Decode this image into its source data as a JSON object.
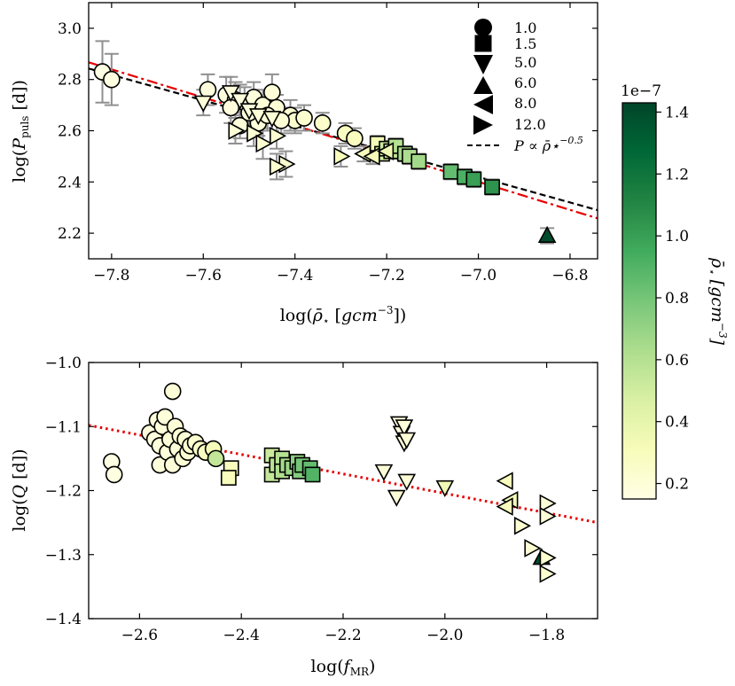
{
  "colorbar": {
    "label": "ρ̄⋆ [gcm⁻³]",
    "exponent": "1e−7",
    "range": [
      0.15,
      1.43
    ],
    "ticks": [
      0.2,
      0.4,
      0.6,
      0.8,
      1.0,
      1.2,
      1.4
    ],
    "tick_labels": [
      "0.2",
      "0.4",
      "0.6",
      "0.8",
      "1.0",
      "1.2",
      "1.4"
    ],
    "colormap": [
      "#ffffe5",
      "#f7fcb9",
      "#d9f0a3",
      "#addd8e",
      "#78c679",
      "#41ab5d",
      "#238443",
      "#006837",
      "#004529"
    ]
  },
  "legend": {
    "entries": [
      {
        "marker": "circle",
        "label": "1.0"
      },
      {
        "marker": "square",
        "label": "1.5"
      },
      {
        "marker": "triangle-down",
        "label": "5.0"
      },
      {
        "marker": "triangle-up",
        "label": "6.0"
      },
      {
        "marker": "triangle-left",
        "label": "8.0"
      },
      {
        "marker": "triangle-right",
        "label": "12.0"
      }
    ],
    "fit_label": "P ∝ ρ̄⋆",
    "fit_exponent": "−0.5"
  },
  "chart_data": [
    {
      "type": "scatter",
      "title": "",
      "xlabel": "log(ρ̄⋆ [gcm⁻³])",
      "ylabel": "log(P_puls [d])",
      "xlim": [
        -7.85,
        -6.74
      ],
      "ylim": [
        2.1,
        3.1
      ],
      "xticks": [
        -7.8,
        -7.6,
        -7.4,
        -7.2,
        -7.0,
        -6.8
      ],
      "xtick_labels": [
        "−7.8",
        "−7.6",
        "−7.4",
        "−7.2",
        "−7.0",
        "−6.8"
      ],
      "yticks": [
        2.2,
        2.4,
        2.6,
        2.8,
        3.0
      ],
      "ytick_labels": [
        "2.2",
        "2.4",
        "2.6",
        "2.8",
        "3.0"
      ],
      "grid": false,
      "legend_position": "top-right",
      "lines": [
        {
          "style": "dashed",
          "color": "#000000",
          "x": [
            -7.85,
            -6.74
          ],
          "y": [
            2.843,
            2.29
          ]
        },
        {
          "style": "dashdot",
          "color": "#e60000",
          "x": [
            -7.85,
            -6.74
          ],
          "y": [
            2.867,
            2.258
          ]
        }
      ],
      "points": [
        {
          "x": -7.82,
          "y": 2.83,
          "err": 0.12,
          "marker": "circle",
          "c": 0.16
        },
        {
          "x": -7.8,
          "y": 2.8,
          "err": 0.1,
          "marker": "circle",
          "c": 0.16
        },
        {
          "x": -7.59,
          "y": 2.76,
          "err": 0.06,
          "marker": "circle",
          "c": 0.18
        },
        {
          "x": -7.55,
          "y": 2.74,
          "err": 0.07,
          "marker": "circle",
          "c": 0.18
        },
        {
          "x": -7.53,
          "y": 2.72,
          "err": 0.07,
          "marker": "circle",
          "c": 0.18
        },
        {
          "x": -7.51,
          "y": 2.71,
          "err": 0.06,
          "marker": "circle",
          "c": 0.19
        },
        {
          "x": -7.49,
          "y": 2.73,
          "err": 0.06,
          "marker": "circle",
          "c": 0.19
        },
        {
          "x": -7.47,
          "y": 2.7,
          "err": 0.06,
          "marker": "circle",
          "c": 0.2
        },
        {
          "x": -7.45,
          "y": 2.75,
          "err": 0.07,
          "marker": "circle",
          "c": 0.2
        },
        {
          "x": -7.44,
          "y": 2.69,
          "err": 0.05,
          "marker": "circle",
          "c": 0.21
        },
        {
          "x": -7.41,
          "y": 2.66,
          "err": 0.06,
          "marker": "circle",
          "c": 0.22
        },
        {
          "x": -7.4,
          "y": 2.64,
          "err": 0.05,
          "marker": "circle",
          "c": 0.23
        },
        {
          "x": -7.38,
          "y": 2.65,
          "err": 0.05,
          "marker": "circle",
          "c": 0.23
        },
        {
          "x": -7.34,
          "y": 2.63,
          "err": 0.04,
          "marker": "circle",
          "c": 0.25
        },
        {
          "x": -7.52,
          "y": 2.62,
          "err": 0.05,
          "marker": "circle",
          "c": 0.19
        },
        {
          "x": -7.48,
          "y": 2.63,
          "err": 0.05,
          "marker": "circle",
          "c": 0.2
        },
        {
          "x": -7.5,
          "y": 2.67,
          "err": 0.06,
          "marker": "circle",
          "c": 0.19
        },
        {
          "x": -7.46,
          "y": 2.66,
          "err": 0.06,
          "marker": "circle",
          "c": 0.2
        },
        {
          "x": -7.43,
          "y": 2.64,
          "err": 0.05,
          "marker": "circle",
          "c": 0.21
        },
        {
          "x": -7.29,
          "y": 2.59,
          "err": 0.04,
          "marker": "circle",
          "c": 0.28
        },
        {
          "x": -7.27,
          "y": 2.57,
          "err": 0.04,
          "marker": "circle",
          "c": 0.29
        },
        {
          "x": -7.54,
          "y": 2.69,
          "err": 0.06,
          "marker": "circle",
          "c": 0.18
        },
        {
          "x": -7.22,
          "y": 2.55,
          "err": 0.03,
          "marker": "square",
          "c": 0.33
        },
        {
          "x": -7.21,
          "y": 2.51,
          "err": 0.02,
          "marker": "square",
          "c": 0.5
        },
        {
          "x": -7.2,
          "y": 2.53,
          "err": 0.03,
          "marker": "square",
          "c": 0.52
        },
        {
          "x": -7.19,
          "y": 2.52,
          "err": 0.03,
          "marker": "square",
          "c": 0.55
        },
        {
          "x": -7.18,
          "y": 2.54,
          "err": 0.03,
          "marker": "square",
          "c": 0.6
        },
        {
          "x": -7.16,
          "y": 2.51,
          "err": 0.03,
          "marker": "square",
          "c": 0.65
        },
        {
          "x": -7.15,
          "y": 2.5,
          "err": 0.03,
          "marker": "square",
          "c": 0.63
        },
        {
          "x": -7.13,
          "y": 2.48,
          "err": 0.03,
          "marker": "square",
          "c": 0.66
        },
        {
          "x": -7.06,
          "y": 2.44,
          "err": 0.03,
          "marker": "square",
          "c": 0.85
        },
        {
          "x": -7.03,
          "y": 2.42,
          "err": 0.03,
          "marker": "square",
          "c": 0.92
        },
        {
          "x": -7.01,
          "y": 2.41,
          "err": 0.03,
          "marker": "square",
          "c": 1.0
        },
        {
          "x": -6.97,
          "y": 2.38,
          "err": 0.03,
          "marker": "square",
          "c": 1.05
        },
        {
          "x": -7.6,
          "y": 2.71,
          "err": 0.05,
          "marker": "triangle-down",
          "c": 0.2
        },
        {
          "x": -7.54,
          "y": 2.75,
          "err": 0.06,
          "marker": "triangle-down",
          "c": 0.18
        },
        {
          "x": -7.52,
          "y": 2.72,
          "err": 0.06,
          "marker": "triangle-down",
          "c": 0.18
        },
        {
          "x": -7.5,
          "y": 2.68,
          "err": 0.05,
          "marker": "triangle-down",
          "c": 0.19
        },
        {
          "x": -7.48,
          "y": 2.66,
          "err": 0.05,
          "marker": "triangle-down",
          "c": 0.2
        },
        {
          "x": -7.45,
          "y": 2.65,
          "err": 0.05,
          "marker": "triangle-down",
          "c": 0.21
        },
        {
          "x": -6.85,
          "y": 2.19,
          "err": 0.03,
          "marker": "triangle-up",
          "c": 1.4
        },
        {
          "x": -7.25,
          "y": 2.51,
          "err": 0.03,
          "marker": "triangle-left",
          "c": 0.3
        },
        {
          "x": -7.23,
          "y": 2.5,
          "err": 0.03,
          "marker": "triangle-left",
          "c": 0.32
        },
        {
          "x": -7.2,
          "y": 2.52,
          "err": 0.03,
          "marker": "triangle-left",
          "c": 0.35
        },
        {
          "x": -7.53,
          "y": 2.6,
          "err": 0.05,
          "marker": "triangle-right",
          "c": 0.2
        },
        {
          "x": -7.49,
          "y": 2.59,
          "err": 0.05,
          "marker": "triangle-right",
          "c": 0.21
        },
        {
          "x": -7.47,
          "y": 2.55,
          "err": 0.06,
          "marker": "triangle-right",
          "c": 0.22
        },
        {
          "x": -7.44,
          "y": 2.58,
          "err": 0.05,
          "marker": "triangle-right",
          "c": 0.22
        },
        {
          "x": -7.42,
          "y": 2.47,
          "err": 0.05,
          "marker": "triangle-right",
          "c": 0.23
        },
        {
          "x": -7.44,
          "y": 2.46,
          "err": 0.05,
          "marker": "triangle-right",
          "c": 0.23
        },
        {
          "x": -7.3,
          "y": 2.5,
          "err": 0.04,
          "marker": "triangle-right",
          "c": 0.3
        }
      ]
    },
    {
      "type": "scatter",
      "title": "",
      "xlabel": "log(f_MR)",
      "ylabel": "log(Q [d])",
      "xlim": [
        -2.7,
        -1.7
      ],
      "ylim": [
        -1.4,
        -1.0
      ],
      "xticks": [
        -2.6,
        -2.4,
        -2.2,
        -2.0,
        -1.8
      ],
      "xtick_labels": [
        "−2.6",
        "−2.4",
        "−2.2",
        "−2.0",
        "−1.8"
      ],
      "yticks": [
        -1.4,
        -1.3,
        -1.2,
        -1.1,
        -1.0
      ],
      "ytick_labels": [
        "−1.4",
        "−1.3",
        "−1.2",
        "−1.1",
        "−1.0"
      ],
      "grid": false,
      "lines": [
        {
          "style": "dotted",
          "color": "#e60000",
          "x": [
            -2.7,
            -1.7
          ],
          "y": [
            -1.098,
            -1.25
          ]
        }
      ],
      "points": [
        {
          "x": -2.655,
          "y": -1.155,
          "marker": "circle",
          "c": 0.16
        },
        {
          "x": -2.65,
          "y": -1.175,
          "marker": "circle",
          "c": 0.16
        },
        {
          "x": -2.58,
          "y": -1.11,
          "marker": "circle",
          "c": 0.18
        },
        {
          "x": -2.57,
          "y": -1.12,
          "marker": "circle",
          "c": 0.18
        },
        {
          "x": -2.565,
          "y": -1.09,
          "marker": "circle",
          "c": 0.18
        },
        {
          "x": -2.56,
          "y": -1.13,
          "marker": "circle",
          "c": 0.19
        },
        {
          "x": -2.56,
          "y": -1.16,
          "marker": "circle",
          "c": 0.19
        },
        {
          "x": -2.555,
          "y": -1.1,
          "marker": "circle",
          "c": 0.19
        },
        {
          "x": -2.55,
          "y": -1.085,
          "marker": "circle",
          "c": 0.19
        },
        {
          "x": -2.545,
          "y": -1.14,
          "marker": "circle",
          "c": 0.19
        },
        {
          "x": -2.54,
          "y": -1.12,
          "marker": "circle",
          "c": 0.2
        },
        {
          "x": -2.535,
          "y": -1.16,
          "marker": "circle",
          "c": 0.2
        },
        {
          "x": -2.535,
          "y": -1.045,
          "marker": "circle",
          "c": 0.2
        },
        {
          "x": -2.53,
          "y": -1.1,
          "marker": "circle",
          "c": 0.2
        },
        {
          "x": -2.525,
          "y": -1.135,
          "marker": "circle",
          "c": 0.2
        },
        {
          "x": -2.52,
          "y": -1.115,
          "marker": "circle",
          "c": 0.21
        },
        {
          "x": -2.515,
          "y": -1.15,
          "marker": "circle",
          "c": 0.21
        },
        {
          "x": -2.51,
          "y": -1.12,
          "marker": "circle",
          "c": 0.21
        },
        {
          "x": -2.505,
          "y": -1.14,
          "marker": "circle",
          "c": 0.22
        },
        {
          "x": -2.5,
          "y": -1.13,
          "marker": "circle",
          "c": 0.22
        },
        {
          "x": -2.49,
          "y": -1.125,
          "marker": "circle",
          "c": 0.23
        },
        {
          "x": -2.48,
          "y": -1.135,
          "marker": "circle",
          "c": 0.25
        },
        {
          "x": -2.47,
          "y": -1.14,
          "marker": "circle",
          "c": 0.28
        },
        {
          "x": -2.455,
          "y": -1.135,
          "marker": "circle",
          "c": 0.32
        },
        {
          "x": -2.45,
          "y": -1.15,
          "marker": "circle",
          "c": 0.55
        },
        {
          "x": -2.42,
          "y": -1.165,
          "marker": "square",
          "c": 0.3
        },
        {
          "x": -2.425,
          "y": -1.18,
          "marker": "square",
          "c": 0.3
        },
        {
          "x": -2.34,
          "y": -1.145,
          "marker": "square",
          "c": 0.52
        },
        {
          "x": -2.34,
          "y": -1.175,
          "marker": "square",
          "c": 0.55
        },
        {
          "x": -2.33,
          "y": -1.16,
          "marker": "square",
          "c": 0.58
        },
        {
          "x": -2.32,
          "y": -1.15,
          "marker": "square",
          "c": 0.6
        },
        {
          "x": -2.32,
          "y": -1.17,
          "marker": "square",
          "c": 0.62
        },
        {
          "x": -2.31,
          "y": -1.16,
          "marker": "square",
          "c": 0.65
        },
        {
          "x": -2.3,
          "y": -1.165,
          "marker": "square",
          "c": 0.68
        },
        {
          "x": -2.29,
          "y": -1.155,
          "marker": "square",
          "c": 0.72
        },
        {
          "x": -2.285,
          "y": -1.17,
          "marker": "square",
          "c": 0.75
        },
        {
          "x": -2.28,
          "y": -1.16,
          "marker": "square",
          "c": 0.8
        },
        {
          "x": -2.265,
          "y": -1.165,
          "marker": "square",
          "c": 0.85
        },
        {
          "x": -2.26,
          "y": -1.175,
          "marker": "square",
          "c": 0.9
        },
        {
          "x": -2.09,
          "y": -1.095,
          "marker": "triangle-down",
          "c": 0.18
        },
        {
          "x": -2.085,
          "y": -1.11,
          "marker": "triangle-down",
          "c": 0.18
        },
        {
          "x": -2.08,
          "y": -1.1,
          "marker": "triangle-down",
          "c": 0.19
        },
        {
          "x": -2.08,
          "y": -1.125,
          "marker": "triangle-down",
          "c": 0.19
        },
        {
          "x": -2.075,
          "y": -1.12,
          "marker": "triangle-down",
          "c": 0.2
        },
        {
          "x": -2.12,
          "y": -1.17,
          "marker": "triangle-down",
          "c": 0.2
        },
        {
          "x": -2.075,
          "y": -1.185,
          "marker": "triangle-down",
          "c": 0.2
        },
        {
          "x": -2.095,
          "y": -1.21,
          "marker": "triangle-down",
          "c": 0.21
        },
        {
          "x": -2.0,
          "y": -1.195,
          "marker": "triangle-down",
          "c": 0.35
        },
        {
          "x": -1.81,
          "y": -1.305,
          "marker": "triangle-up",
          "c": 1.4
        },
        {
          "x": -1.88,
          "y": -1.185,
          "marker": "triangle-left",
          "c": 0.3
        },
        {
          "x": -1.87,
          "y": -1.215,
          "marker": "triangle-left",
          "c": 0.32
        },
        {
          "x": -1.88,
          "y": -1.225,
          "marker": "triangle-left",
          "c": 0.3
        },
        {
          "x": -1.8,
          "y": -1.22,
          "marker": "triangle-right",
          "c": 0.2
        },
        {
          "x": -1.8,
          "y": -1.24,
          "marker": "triangle-right",
          "c": 0.21
        },
        {
          "x": -1.85,
          "y": -1.255,
          "marker": "triangle-right",
          "c": 0.22
        },
        {
          "x": -1.83,
          "y": -1.29,
          "marker": "triangle-right",
          "c": 0.22
        },
        {
          "x": -1.8,
          "y": -1.305,
          "marker": "triangle-right",
          "c": 0.23
        },
        {
          "x": -1.8,
          "y": -1.33,
          "marker": "triangle-right",
          "c": 0.23
        }
      ]
    }
  ]
}
